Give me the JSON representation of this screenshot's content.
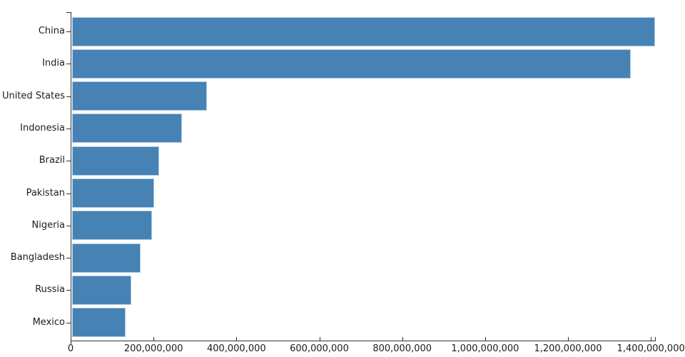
{
  "chart_data": {
    "type": "bar",
    "orientation": "horizontal",
    "title": "",
    "xlabel": "",
    "ylabel": "",
    "grid": false,
    "legend": false,
    "categories": [
      "China",
      "India",
      "United States",
      "Indonesia",
      "Brazil",
      "Pakistan",
      "Nigeria",
      "Bangladesh",
      "Russia",
      "Mexico"
    ],
    "values": [
      1410000000,
      1352000000,
      328000000,
      268000000,
      213000000,
      202000000,
      197000000,
      168000000,
      147000000,
      132000000
    ],
    "xlim": [
      0,
      1410000000
    ],
    "x_ticks": [
      0,
      200000000,
      400000000,
      600000000,
      800000000,
      1000000000,
      1200000000,
      1400000000
    ],
    "x_tick_labels": [
      "0",
      "200,000,000",
      "400,000,000",
      "600,000,000",
      "800,000,000",
      "1,000,000,000",
      "1,200,000,000",
      "1,400,000,000"
    ],
    "colors": {
      "bar_fill": "#4682b4",
      "bar_stroke": "#a9c9e4",
      "axis": "#333333",
      "text": "#1c1c1c",
      "background": "#ffffff"
    }
  }
}
